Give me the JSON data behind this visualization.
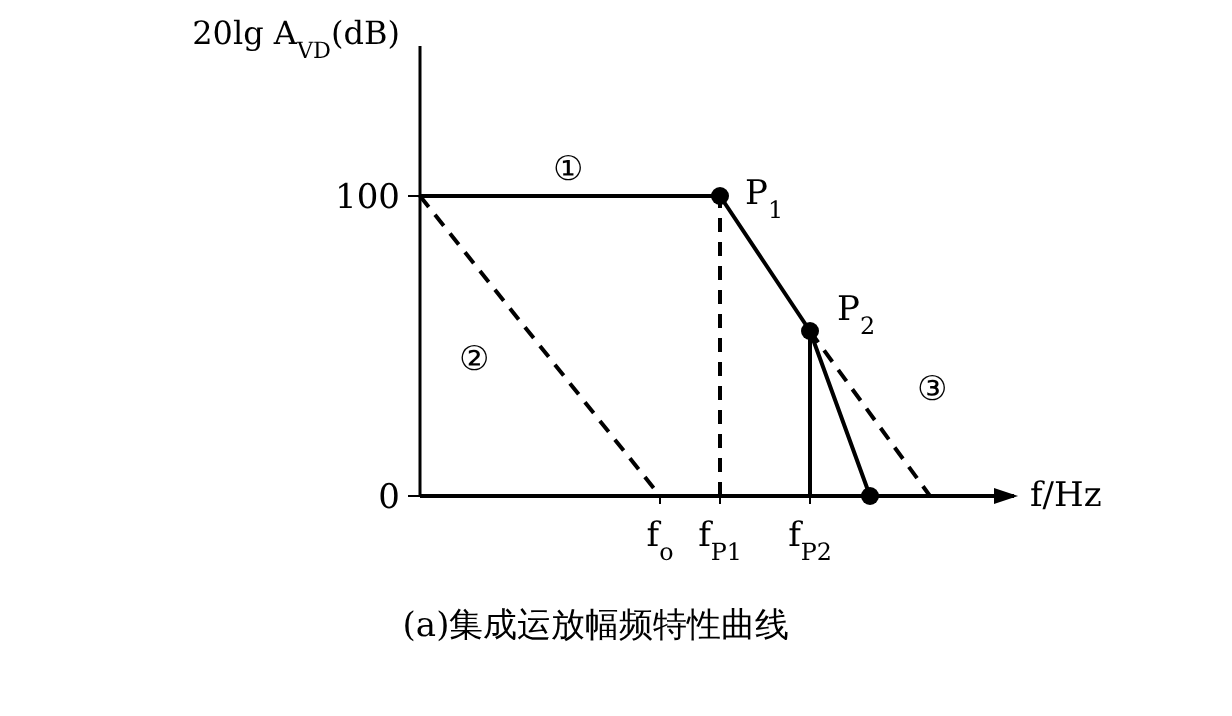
{
  "chart_data": {
    "type": "line",
    "ylabel": "20lg A$_{VD}$(dB)",
    "xlabel": "f/Hz",
    "ylim": [
      0,
      150
    ],
    "yticks": [
      0,
      100
    ],
    "categories": [
      null,
      null,
      null,
      null,
      null,
      null,
      null,
      null,
      "f$_{o}$",
      null,
      "f$_{P1}$",
      null,
      null,
      "f$_{P2}$",
      null,
      null,
      null,
      null,
      null,
      null
    ],
    "series": [
      {
        "color": "#000000",
        "values": [
          100,
          null,
          null,
          null,
          null,
          null,
          null,
          null,
          null,
          null,
          100,
          null,
          null,
          null,
          null,
          null,
          null,
          null,
          null,
          null
        ],
        "line_style": "solid"
      },
      {
        "color": "#000000",
        "values": [
          null,
          null,
          null,
          null,
          null,
          null,
          null,
          null,
          null,
          null,
          100,
          null,
          null,
          55,
          null,
          0,
          null,
          null,
          null,
          null
        ],
        "line_style": "solid",
        "marker": "circle"
      },
      {
        "color": "#000000",
        "values": [
          null,
          null,
          null,
          null,
          null,
          null,
          null,
          null,
          null,
          null,
          null,
          null,
          null,
          55,
          null,
          null,
          null,
          0,
          null,
          null
        ],
        "line_style": "dashed"
      },
      {
        "color": "#000000",
        "values": [
          100,
          null,
          null,
          null,
          null,
          null,
          null,
          null,
          0,
          null,
          null,
          null,
          null,
          null,
          null,
          null,
          null,
          null,
          null,
          null
        ],
        "line_style": "dashed"
      }
    ],
    "ref_lines": [
      {
        "axis": "x",
        "value": "f$_{P1}$",
        "line_style": "dashed"
      },
      {
        "axis": "x",
        "value": "f$_{P2}$",
        "line_style": "solid"
      }
    ],
    "annotations": [
      "①",
      "②",
      "③",
      "P$_{1}$",
      "P$_{2}$",
      "(a)集成运放幅频特性曲线"
    ]
  }
}
